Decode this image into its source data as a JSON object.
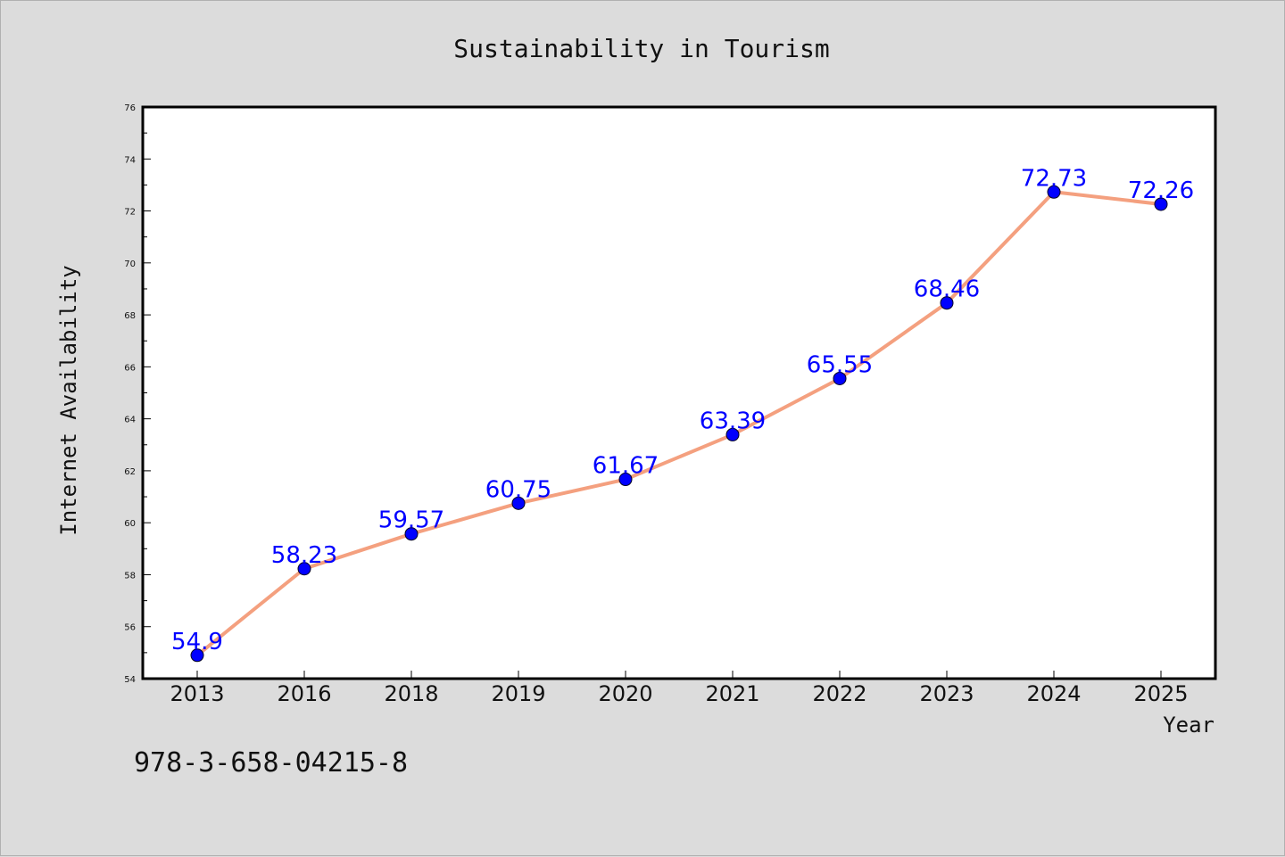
{
  "chart_data": {
    "type": "line",
    "title": "Sustainability in Tourism",
    "xlabel": "Year",
    "ylabel": "Internet Availability",
    "categories": [
      "2013",
      "2016",
      "2018",
      "2019",
      "2020",
      "2021",
      "2022",
      "2023",
      "2024",
      "2025"
    ],
    "series": [
      {
        "values": [
          54.9,
          58.23,
          59.57,
          60.75,
          61.67,
          63.39,
          65.55,
          68.46,
          72.73,
          72.26
        ],
        "labels": [
          "54.9",
          "58.23",
          "59.57",
          "60.75",
          "61.67",
          "63.39",
          "65.55",
          "68.46",
          "72.73",
          "72.26"
        ],
        "line_color": "#f4a07f",
        "marker_color": "#0000ff"
      }
    ],
    "ylim": [
      54,
      76
    ],
    "yticks": [
      "54",
      "56",
      "58",
      "60",
      "62",
      "64",
      "66",
      "68",
      "70",
      "72",
      "74",
      "76"
    ],
    "grid": false,
    "legend": "none"
  },
  "annotation": {
    "isbn": "978-3-658-04215-8"
  },
  "colors": {
    "background": "#dcdcdc",
    "plot_background": "#ffffff",
    "line": "#f4a07f",
    "marker": "#0000ff",
    "data_label": "#0000ff"
  }
}
